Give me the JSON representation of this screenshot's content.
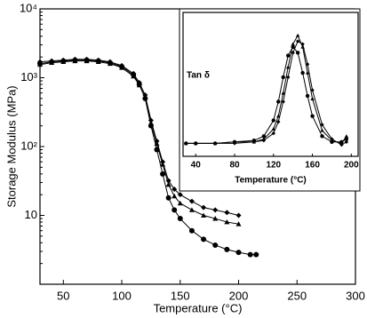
{
  "chart_data": [
    {
      "type": "line",
      "xlabel": "Temperature (°C)",
      "ylabel": "Storage Modulus (MPa)",
      "log_y": true,
      "xlim": [
        30,
        300
      ],
      "xticks": [
        50,
        100,
        150,
        200,
        250,
        300
      ],
      "ylim": [
        1,
        10000
      ],
      "yticks": [
        10,
        {
          "value": 100,
          "label": "10²"
        },
        {
          "value": 1000,
          "label": "10³"
        },
        {
          "value": 10000,
          "label": "10⁴"
        }
      ],
      "series": [
        {
          "color": "#000000",
          "marker": "circle",
          "x": [
            30,
            40,
            50,
            60,
            70,
            80,
            90,
            100,
            110,
            115,
            120,
            125,
            130,
            135,
            140,
            145,
            150,
            160,
            170,
            180,
            190,
            200,
            210,
            215
          ],
          "values": [
            1600,
            1700,
            1750,
            1800,
            1800,
            1750,
            1650,
            1450,
            1100,
            800,
            500,
            200,
            90,
            40,
            18,
            12,
            9,
            6,
            4.5,
            3.7,
            3.2,
            2.9,
            2.7,
            2.7
          ]
        },
        {
          "color": "#000000",
          "marker": "triangle",
          "x": [
            30,
            40,
            50,
            60,
            70,
            80,
            90,
            100,
            110,
            115,
            120,
            125,
            130,
            135,
            140,
            145,
            150,
            160,
            170,
            180,
            190,
            200
          ],
          "values": [
            1550,
            1650,
            1700,
            1750,
            1750,
            1700,
            1600,
            1400,
            1050,
            780,
            520,
            220,
            110,
            55,
            28,
            19,
            15,
            12,
            10,
            9,
            8,
            7.5
          ]
        },
        {
          "color": "#000000",
          "marker": "diamond",
          "x": [
            30,
            40,
            50,
            60,
            70,
            80,
            90,
            100,
            110,
            115,
            120,
            125,
            130,
            135,
            140,
            145,
            150,
            160,
            170,
            180,
            190,
            200
          ],
          "values": [
            1700,
            1750,
            1800,
            1850,
            1850,
            1800,
            1700,
            1500,
            1150,
            850,
            560,
            240,
            120,
            60,
            32,
            24,
            20,
            16,
            13,
            12,
            11,
            10
          ]
        }
      ]
    },
    {
      "type": "line",
      "xlabel": "Temperature (°C)",
      "ylabel": "Tan δ",
      "xlim": [
        27,
        207
      ],
      "xticks": [
        40,
        80,
        120,
        160,
        200
      ],
      "ylim": [
        0,
        1
      ],
      "series": [
        {
          "color": "#000000",
          "marker": "circle",
          "x": [
            30,
            40,
            60,
            80,
            100,
            110,
            120,
            125,
            130,
            135,
            140,
            145,
            150,
            155,
            160,
            170,
            180,
            190,
            195
          ],
          "values": [
            0.09,
            0.09,
            0.09,
            0.1,
            0.11,
            0.14,
            0.25,
            0.38,
            0.55,
            0.7,
            0.76,
            0.72,
            0.58,
            0.42,
            0.28,
            0.14,
            0.1,
            0.1,
            0.12
          ]
        },
        {
          "color": "#000000",
          "marker": "triangle",
          "x": [
            30,
            40,
            60,
            80,
            100,
            110,
            120,
            125,
            130,
            135,
            140,
            145,
            150,
            155,
            160,
            170,
            180,
            190,
            195
          ],
          "values": [
            0.09,
            0.09,
            0.09,
            0.1,
            0.1,
            0.12,
            0.19,
            0.28,
            0.44,
            0.62,
            0.78,
            0.84,
            0.76,
            0.58,
            0.4,
            0.18,
            0.11,
            0.09,
            0.14
          ]
        },
        {
          "color": "#000000",
          "marker": "diamond",
          "x": [
            30,
            40,
            60,
            80,
            100,
            110,
            120,
            125,
            130,
            135,
            140,
            145,
            150,
            155,
            160,
            170,
            180,
            190,
            195
          ],
          "values": [
            0.09,
            0.09,
            0.09,
            0.09,
            0.1,
            0.11,
            0.16,
            0.24,
            0.38,
            0.55,
            0.72,
            0.8,
            0.78,
            0.64,
            0.46,
            0.22,
            0.12,
            0.08,
            0.1
          ]
        }
      ]
    }
  ]
}
